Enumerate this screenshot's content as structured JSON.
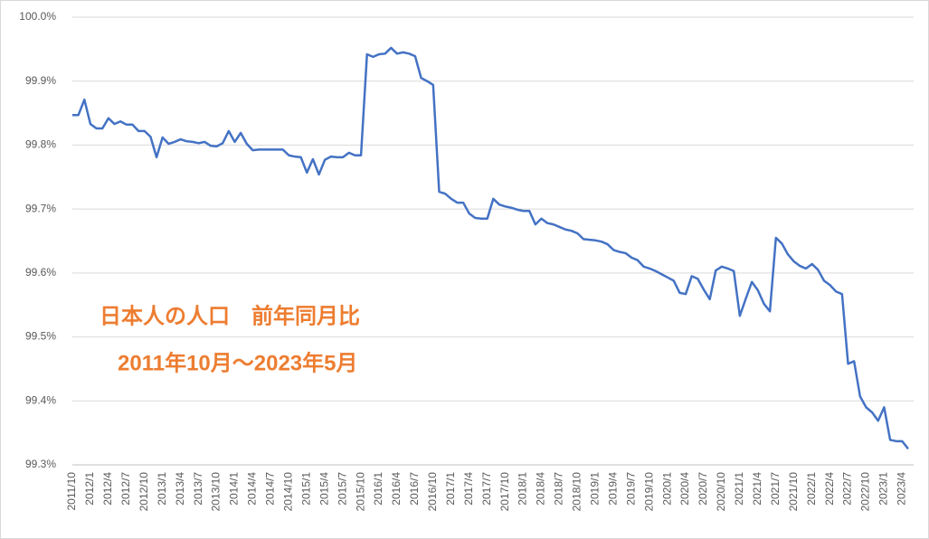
{
  "chart_data": {
    "type": "line",
    "annotations": [
      "日本人の人口　前年同月比",
      "2011年10月～2023年5月"
    ],
    "annotation_color": "#ED7D31",
    "categories": [
      "2011/10",
      null,
      null,
      "2012/1",
      null,
      null,
      "2012/4",
      null,
      null,
      "2012/7",
      null,
      null,
      "2012/10",
      null,
      null,
      "2013/1",
      null,
      null,
      "2013/4",
      null,
      null,
      "2013/7",
      null,
      null,
      "2013/10",
      null,
      null,
      "2014/1",
      null,
      null,
      "2014/4",
      null,
      null,
      "2014/7",
      null,
      null,
      "2014/10",
      null,
      null,
      "2015/1",
      null,
      null,
      "2015/4",
      null,
      null,
      "2015/7",
      null,
      null,
      "2015/10",
      null,
      null,
      "2016/1",
      null,
      null,
      "2016/4",
      null,
      null,
      "2016/7",
      null,
      null,
      "2016/10",
      null,
      null,
      "2017/1",
      null,
      null,
      "2017/4",
      null,
      null,
      "2017/7",
      null,
      null,
      "2017/10",
      null,
      null,
      "2018/1",
      null,
      null,
      "2018/4",
      null,
      null,
      "2018/7",
      null,
      null,
      "2018/10",
      null,
      null,
      "2019/1",
      null,
      null,
      "2019/4",
      null,
      null,
      "2019/7",
      null,
      null,
      "2019/10",
      null,
      null,
      "2020/1",
      null,
      null,
      "2020/4",
      null,
      null,
      "2020/7",
      null,
      null,
      "2020/10",
      null,
      null,
      "2021/1",
      null,
      null,
      "2021/4",
      null,
      null,
      "2021/7",
      null,
      null,
      "2021/10",
      null,
      null,
      "2022/1",
      null,
      null,
      "2022/4",
      null,
      null,
      "2022/7",
      null,
      null,
      "2022/10",
      null,
      null,
      "2023/1",
      null,
      null,
      "2023/4",
      null
    ],
    "color": "#4472C4",
    "values": [
      99.847,
      99.847,
      99.871,
      99.833,
      99.826,
      99.826,
      99.842,
      99.833,
      99.837,
      99.832,
      99.832,
      99.822,
      99.822,
      99.813,
      99.781,
      99.812,
      99.802,
      99.805,
      99.809,
      99.806,
      99.805,
      99.803,
      99.805,
      99.799,
      99.798,
      99.803,
      99.822,
      99.805,
      99.819,
      99.802,
      99.792,
      99.793,
      99.793,
      99.793,
      99.793,
      99.793,
      99.784,
      99.782,
      99.781,
      99.757,
      99.778,
      99.754,
      99.777,
      99.782,
      99.781,
      99.781,
      99.788,
      99.784,
      99.784,
      99.942,
      99.938,
      99.942,
      99.943,
      99.952,
      99.943,
      99.945,
      99.943,
      99.939,
      99.905,
      99.9,
      99.894,
      99.727,
      99.724,
      99.716,
      99.71,
      99.71,
      99.693,
      99.686,
      99.685,
      99.685,
      99.716,
      99.707,
      99.704,
      99.702,
      99.699,
      99.697,
      99.697,
      99.676,
      99.685,
      99.678,
      99.676,
      99.672,
      99.668,
      99.666,
      99.662,
      99.653,
      99.652,
      99.651,
      99.649,
      99.645,
      99.636,
      99.633,
      99.631,
      99.624,
      99.62,
      99.61,
      99.607,
      99.603,
      99.598,
      99.593,
      99.588,
      99.569,
      99.567,
      99.595,
      99.591,
      99.574,
      99.559,
      99.604,
      99.61,
      99.607,
      99.603,
      99.533,
      99.56,
      99.586,
      99.573,
      99.552,
      99.54,
      99.655,
      99.646,
      99.629,
      99.618,
      99.611,
      99.607,
      99.614,
      99.605,
      99.588,
      99.581,
      99.571,
      99.567,
      99.458,
      99.462,
      99.407,
      99.39,
      99.382,
      99.369,
      99.39,
      99.339,
      99.337,
      99.337,
      99.325
    ],
    "ylim": [
      99.3,
      100.0
    ],
    "yticks": [
      {
        "value": 99.3,
        "label": "99.3%"
      },
      {
        "value": 99.4,
        "label": "99.4%"
      },
      {
        "value": 99.5,
        "label": "99.5%"
      },
      {
        "value": 99.6,
        "label": "99.6%"
      },
      {
        "value": 99.7,
        "label": "99.7%"
      },
      {
        "value": 99.8,
        "label": "99.8%"
      },
      {
        "value": 99.9,
        "label": "99.9%"
      },
      {
        "value": 100.0,
        "label": "100.0%"
      }
    ],
    "grid": true
  }
}
